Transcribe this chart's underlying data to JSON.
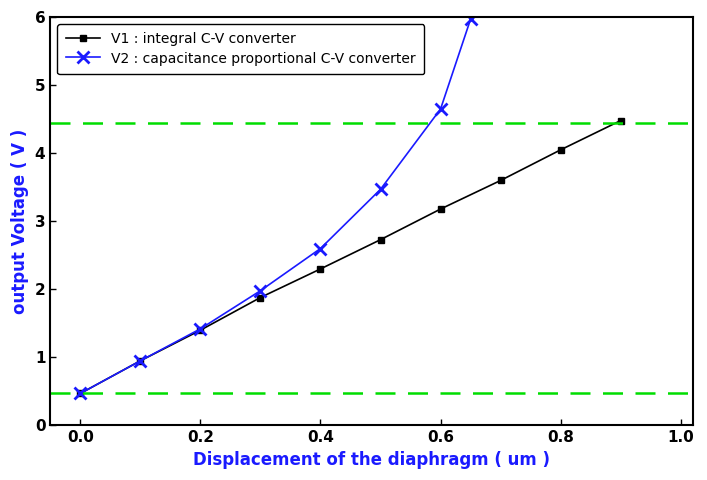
{
  "v1_x": [
    0.0,
    0.1,
    0.2,
    0.3,
    0.4,
    0.5,
    0.6,
    0.7,
    0.8,
    0.9
  ],
  "v1_y": [
    0.47,
    0.95,
    1.4,
    1.88,
    2.3,
    2.73,
    3.18,
    3.6,
    4.05,
    4.48
  ],
  "v2_x": [
    0.0,
    0.1,
    0.2,
    0.3,
    0.4,
    0.5,
    0.6,
    0.65
  ],
  "v2_y": [
    0.47,
    0.95,
    1.42,
    1.98,
    2.6,
    3.47,
    4.65,
    5.97
  ],
  "hline_upper": 4.45,
  "hline_lower": 0.47,
  "xlim": [
    -0.05,
    1.02
  ],
  "ylim": [
    0,
    6
  ],
  "xticks": [
    0.0,
    0.2,
    0.4,
    0.6,
    0.8,
    1.0
  ],
  "yticks": [
    0,
    1,
    2,
    3,
    4,
    5,
    6
  ],
  "xlabel": "Displacement of the diaphragm ( um )",
  "ylabel": "output Voltage ( V )",
  "legend_v1": "V1 : integral C-V converter",
  "legend_v2": "V2 : capacitance proportional C-V converter",
  "v1_color": "#000000",
  "v2_color": "#1a1aff",
  "hline_color": "#00dd00",
  "label_color": "#1a1aff",
  "background_color": "#ffffff",
  "label_fontsize": 12,
  "tick_fontsize": 11,
  "legend_fontsize": 10
}
